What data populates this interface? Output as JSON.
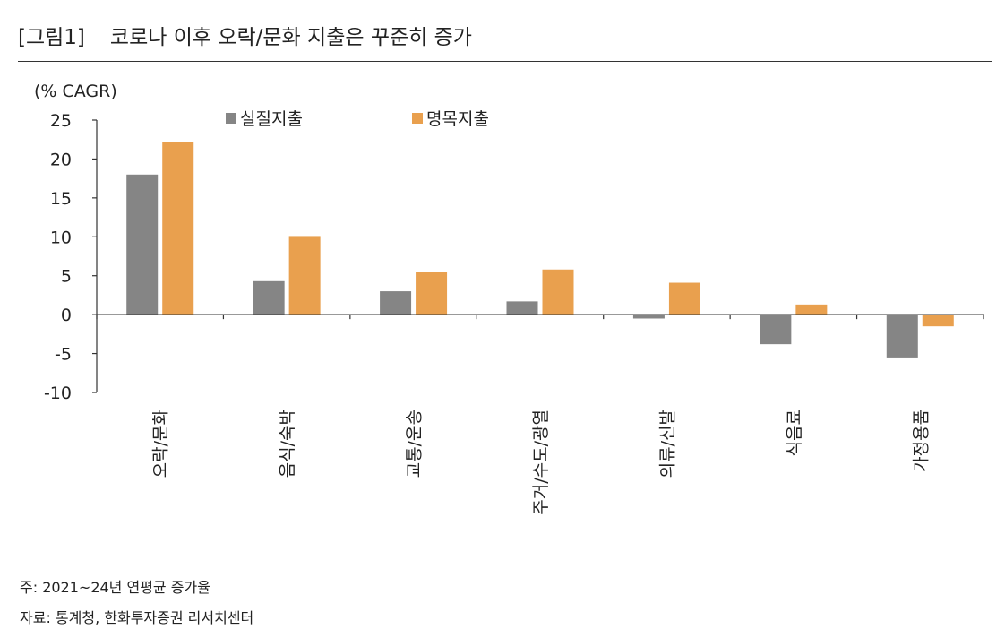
{
  "figure": {
    "label": "[그림1]",
    "title": "코로나 이후 오락/문화 지출은 꾸준히 증가"
  },
  "footer": {
    "note": "주: 2021~24년 연평균 증가율",
    "source": "자료: 통계청, 한화투자증권 리서치센터"
  },
  "colors": {
    "real": "#858585",
    "nominal": "#E9A04E",
    "axis": "#333333",
    "text": "#222222"
  },
  "chart_data": {
    "type": "bar",
    "title": "코로나 이후 오락/문화 지출은 꾸준히 증가",
    "ylabel": "(% CAGR)",
    "xlabel": "",
    "ylim": [
      -10,
      25
    ],
    "yticks": [
      25,
      20,
      15,
      10,
      5,
      0,
      -5,
      -10
    ],
    "legend_position": "top",
    "categories": [
      "오락/문화",
      "음식/숙박",
      "교통/운송",
      "주거/수도/광열",
      "의류/신발",
      "식음료",
      "가정용품"
    ],
    "series": [
      {
        "name": "실질지출",
        "values": [
          18.0,
          4.3,
          3.0,
          1.7,
          -0.5,
          -3.8,
          -5.5
        ]
      },
      {
        "name": "명목지출",
        "values": [
          22.2,
          10.1,
          5.5,
          5.8,
          4.1,
          1.3,
          -1.5
        ]
      }
    ]
  }
}
